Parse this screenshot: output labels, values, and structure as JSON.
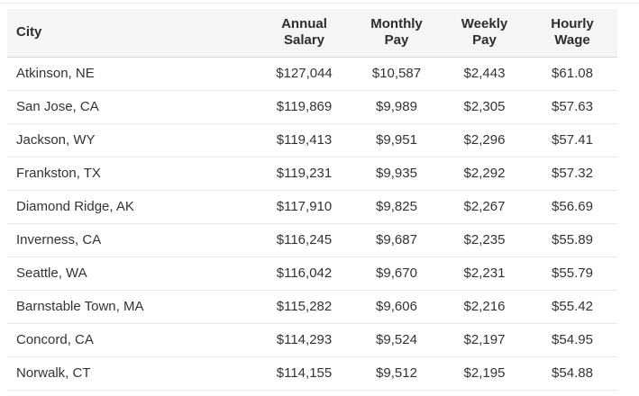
{
  "colors": {
    "header_bg": "#f4f5f7",
    "header_border": "#d6d6d6",
    "row_border": "#e9e9e9",
    "header_text": "#2d2d2d",
    "body_text": "#333333",
    "top_rule": "#ececec",
    "page_bg": "#ffffff"
  },
  "table": {
    "columns": [
      {
        "label": "City"
      },
      {
        "label": "Annual Salary"
      },
      {
        "label": "Monthly Pay"
      },
      {
        "label": "Weekly Pay"
      },
      {
        "label": "Hourly Wage"
      }
    ],
    "rows": [
      {
        "city": "Atkinson, NE",
        "annual": "$127,044",
        "monthly": "$10,587",
        "weekly": "$2,443",
        "hourly": "$61.08"
      },
      {
        "city": "San Jose, CA",
        "annual": "$119,869",
        "monthly": "$9,989",
        "weekly": "$2,305",
        "hourly": "$57.63"
      },
      {
        "city": "Jackson, WY",
        "annual": "$119,413",
        "monthly": "$9,951",
        "weekly": "$2,296",
        "hourly": "$57.41"
      },
      {
        "city": "Frankston, TX",
        "annual": "$119,231",
        "monthly": "$9,935",
        "weekly": "$2,292",
        "hourly": "$57.32"
      },
      {
        "city": "Diamond Ridge, AK",
        "annual": "$117,910",
        "monthly": "$9,825",
        "weekly": "$2,267",
        "hourly": "$56.69"
      },
      {
        "city": "Inverness, CA",
        "annual": "$116,245",
        "monthly": "$9,687",
        "weekly": "$2,235",
        "hourly": "$55.89"
      },
      {
        "city": "Seattle, WA",
        "annual": "$116,042",
        "monthly": "$9,670",
        "weekly": "$2,231",
        "hourly": "$55.79"
      },
      {
        "city": "Barnstable Town, MA",
        "annual": "$115,282",
        "monthly": "$9,606",
        "weekly": "$2,216",
        "hourly": "$55.42"
      },
      {
        "city": "Concord, CA",
        "annual": "$114,293",
        "monthly": "$9,524",
        "weekly": "$2,197",
        "hourly": "$54.95"
      },
      {
        "city": "Norwalk, CT",
        "annual": "$114,155",
        "monthly": "$9,512",
        "weekly": "$2,195",
        "hourly": "$54.88"
      }
    ]
  }
}
